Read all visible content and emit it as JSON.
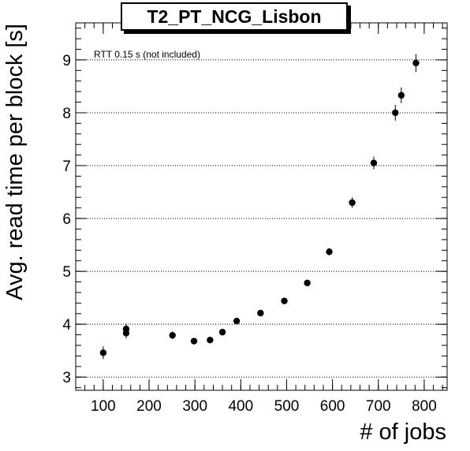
{
  "chart_data": {
    "type": "scatter",
    "title": "T2_PT_NCG_Lisbon",
    "xlabel": "# of jobs",
    "ylabel": "Avg. read time per block [s]",
    "annotation": "RTT 0.15 s (not included)",
    "xlim": [
      40,
      850
    ],
    "ylim": [
      2.75,
      9.7
    ],
    "xticks": [
      100,
      200,
      300,
      400,
      500,
      600,
      700,
      800
    ],
    "yticks": [
      3,
      4,
      5,
      6,
      7,
      8,
      9
    ],
    "grid": "horizontal-dotted",
    "series": [
      {
        "points": [
          {
            "x": 100,
            "y": 3.46,
            "err": 0.12
          },
          {
            "x": 150,
            "y": 3.83,
            "err": 0.1
          },
          {
            "x": 150,
            "y": 3.91,
            "err": 0.1
          },
          {
            "x": 251,
            "y": 3.79,
            "err": 0.07
          },
          {
            "x": 298,
            "y": 3.68,
            "err": 0.05
          },
          {
            "x": 333,
            "y": 3.7,
            "err": 0.05
          },
          {
            "x": 360,
            "y": 3.85,
            "err": 0.05
          },
          {
            "x": 391,
            "y": 4.06,
            "err": 0.05
          },
          {
            "x": 443,
            "y": 4.21,
            "err": 0.05
          },
          {
            "x": 495,
            "y": 4.44,
            "err": 0.05
          },
          {
            "x": 545,
            "y": 4.78,
            "err": 0.06
          },
          {
            "x": 593,
            "y": 5.37,
            "err": 0.07
          },
          {
            "x": 643,
            "y": 6.3,
            "err": 0.1
          },
          {
            "x": 690,
            "y": 7.05,
            "err": 0.12
          },
          {
            "x": 737,
            "y": 8.0,
            "err": 0.15
          },
          {
            "x": 750,
            "y": 8.33,
            "err": 0.15
          },
          {
            "x": 782,
            "y": 8.94,
            "err": 0.17
          }
        ]
      }
    ]
  }
}
